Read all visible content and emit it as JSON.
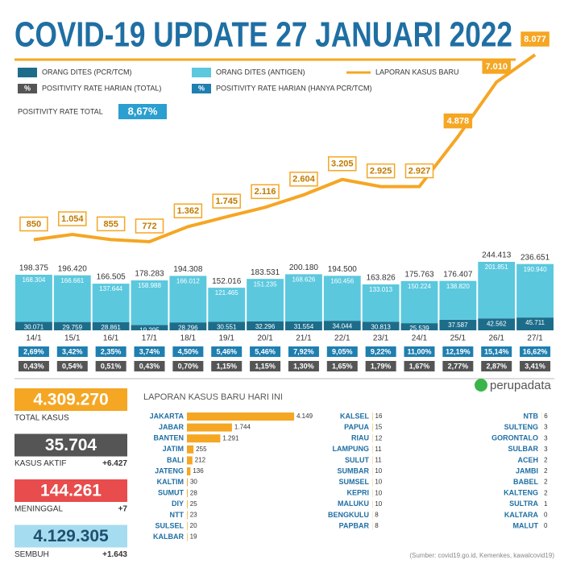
{
  "title": "COVID-19 UPDATE 27 JANUARI 2022",
  "positivity_total": {
    "label": "POSITIVITY RATE TOTAL",
    "value": "8,67%"
  },
  "chart_data": [
    {
      "type": "combo",
      "categories": [
        "14/1",
        "15/1",
        "16/1",
        "17/1",
        "18/1",
        "19/1",
        "20/1",
        "21/1",
        "22/1",
        "23/1",
        "24/1",
        "25/1",
        "26/1",
        "27/1"
      ],
      "series": [
        {
          "name": "ORANG DITES (PCR/TCM)",
          "type": "bar",
          "color": "#1d6d8a",
          "values": [
            30071,
            29759,
            28861,
            19295,
            28296,
            30551,
            32296,
            31554,
            34044,
            30813,
            25539,
            37587,
            42562,
            45711
          ],
          "value_labels": [
            "30.071",
            "29.759",
            "28.861",
            "19.295",
            "28.296",
            "30.551",
            "32.296",
            "31.554",
            "34.044",
            "30.813",
            "25.539",
            "37.587",
            "42.562",
            "45.711"
          ]
        },
        {
          "name": "ORANG DITES (ANTIGEN)",
          "type": "bar",
          "color": "#5bc8de",
          "values": [
            168304,
            166661,
            137644,
            158988,
            166012,
            121465,
            151235,
            168626,
            160456,
            133013,
            150224,
            138820,
            201851,
            190940
          ],
          "value_labels": [
            "168.304",
            "166.661",
            "137.644",
            "158.988",
            "166.012",
            "121.465",
            "151.235",
            "168.626",
            "160.456",
            "133.013",
            "150.224",
            "138.820",
            "201.851",
            "190.940"
          ]
        },
        {
          "name": "LAPORAN KASUS BARU",
          "type": "line",
          "color": "#f5a623",
          "values": [
            850,
            1054,
            855,
            772,
            1362,
            1745,
            2116,
            2604,
            3205,
            2925,
            2927,
            4878,
            7010,
            8077
          ],
          "value_labels": [
            "850",
            "1.054",
            "855",
            "772",
            "1.362",
            "1.745",
            "2.116",
            "2.604",
            "3.205",
            "2.925",
            "2.927",
            "4.878",
            "7.010",
            "8.077"
          ]
        }
      ],
      "total_labels": [
        "198.375",
        "196.420",
        "166.505",
        "178.283",
        "194.308",
        "152.016",
        "183.531",
        "200.180",
        "194.500",
        "163.826",
        "175.763",
        "176.407",
        "244.413",
        "236.651"
      ],
      "positivity_symbol": "%",
      "positivity_rows": [
        {
          "name": "POSITIVITY RATE HARIAN (HANYA PCR/TCM)",
          "color": "#1f7fb0",
          "labels": [
            "2,69%",
            "3,42%",
            "2,35%",
            "3,74%",
            "4,50%",
            "5,46%",
            "5,46%",
            "7,92%",
            "9,05%",
            "9,22%",
            "11,00%",
            "12,19%",
            "15,14%",
            "16,62%"
          ]
        },
        {
          "name": "POSITIVITY RATE HARIAN (TOTAL)",
          "color": "#555555",
          "labels": [
            "0,43%",
            "0,54%",
            "0,51%",
            "0,43%",
            "0,70%",
            "1,15%",
            "1,15%",
            "1,30%",
            "1,65%",
            "1,79%",
            "1,67%",
            "2,77%",
            "2,87%",
            "3,41%"
          ]
        }
      ]
    },
    {
      "type": "hbar",
      "title": "LAPORAN KASUS BARU HARI INI",
      "color": "#f5a623",
      "categories": [
        "JAKARTA",
        "JABAR",
        "BANTEN",
        "JATIM",
        "BALI",
        "JATENG",
        "KALTIM",
        "SUMUT",
        "DIY",
        "NTT",
        "SULSEL",
        "KALBAR",
        "KALSEL",
        "PAPUA",
        "RIAU",
        "LAMPUNG",
        "SULUT",
        "SUMBAR",
        "SUMSEL",
        "KEPRI",
        "MALUKU",
        "BENGKULU",
        "PAPBAR",
        "NTB",
        "SULTENG",
        "GORONTALO",
        "SULBAR",
        "ACEH",
        "JAMBI",
        "BABEL",
        "KALTENG",
        "SULTRA",
        "KALTARA",
        "MALUT"
      ],
      "values": [
        4149,
        1744,
        1291,
        255,
        212,
        136,
        30,
        28,
        25,
        23,
        20,
        19,
        16,
        15,
        12,
        11,
        11,
        10,
        10,
        10,
        10,
        8,
        8,
        6,
        3,
        3,
        3,
        2,
        2,
        2,
        2,
        1,
        0,
        0
      ],
      "value_labels": [
        "4.149",
        "1.744",
        "1.291",
        "255",
        "212",
        "136",
        "30",
        "28",
        "25",
        "23",
        "20",
        "19",
        "16",
        "15",
        "12",
        "11",
        "11",
        "10",
        "10",
        "10",
        "10",
        "8",
        "8",
        "6",
        "3",
        "3",
        "3",
        "2",
        "2",
        "2",
        "2",
        "1",
        "0",
        "0"
      ]
    }
  ],
  "summary": [
    {
      "value": "4.309.270",
      "label": "TOTAL KASUS"
    },
    {
      "value": "35.704",
      "label": "KASUS AKTIF",
      "change": "+6.427"
    },
    {
      "value": "144.261",
      "label": "MENINGGAL",
      "change": "+7"
    },
    {
      "value": "4.129.305",
      "label": "SEMBUH",
      "change": "+1.643"
    }
  ],
  "logo": "perupadata",
  "source": "(Sumber: covid19.go.id, Kemenkes, kawalcovid19)"
}
